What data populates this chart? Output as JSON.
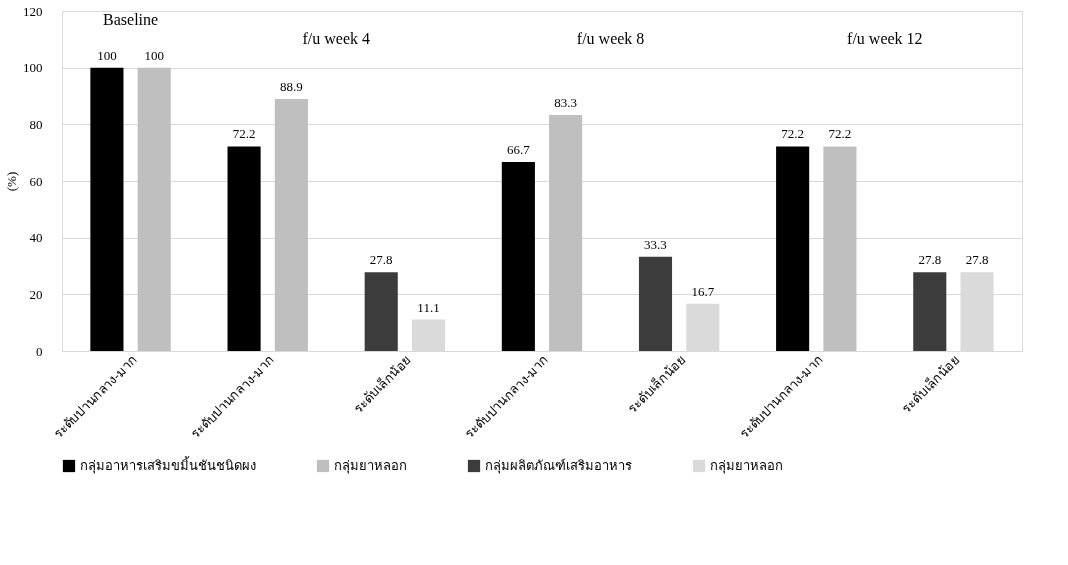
{
  "chart_data": {
    "type": "bar",
    "ylabel": "(%)",
    "categories": [
      "ระดับปานกลาง-มาก",
      "ระดับปานกลาง-มาก",
      "ระดับเล็กน้อย",
      "ระดับปานกลาง-มาก",
      "ระดับเล็กน้อย",
      "ระดับปานกลาง-มาก",
      "ระดับเล็กน้อย"
    ],
    "series": [
      {
        "name": "กลุ่มอาหารเสริมขมิ้นชันชนิดผง",
        "color": "#000000",
        "values": [
          100,
          72.2,
          null,
          66.7,
          null,
          72.2,
          null
        ]
      },
      {
        "name": "กลุ่มยาหลอก",
        "color": "#bfbfbf",
        "values": [
          100,
          88.9,
          null,
          83.3,
          null,
          72.2,
          null
        ]
      },
      {
        "name": "กลุ่มผลิตภัณฑ์เสริมอาหาร",
        "color": "#3c3c3c",
        "values": [
          null,
          null,
          27.8,
          null,
          33.3,
          null,
          27.8
        ]
      },
      {
        "name": "กลุ่มยาหลอก",
        "color": "#dadada",
        "values": [
          null,
          null,
          11.1,
          null,
          16.7,
          null,
          27.8
        ]
      }
    ],
    "ylim": [
      0,
      120
    ],
    "yticks": [
      0,
      20,
      40,
      60,
      80,
      100,
      120
    ],
    "grid": "y",
    "legend": "bottom",
    "data_labels": true,
    "annotations": [
      "Baseline",
      "f/u week 4",
      "f/u week 8",
      "f/u week 12"
    ]
  }
}
